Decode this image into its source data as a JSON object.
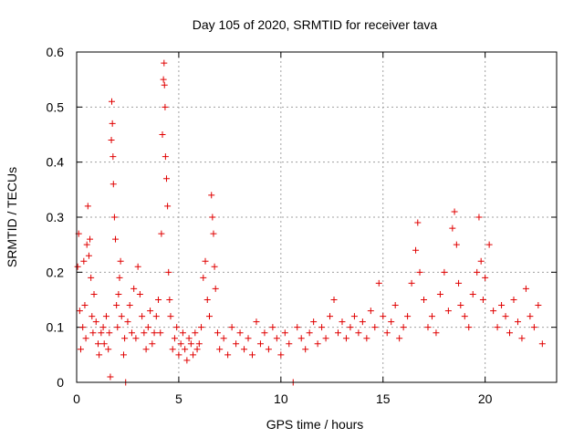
{
  "chart_data": {
    "type": "scatter",
    "title": "Day 105 of 2020, SRMTID for receiver tava",
    "xlabel": "GPS time / hours",
    "ylabel": "SRMTID / TECUs",
    "xlim": [
      0,
      23.5
    ],
    "ylim": [
      0,
      0.6
    ],
    "xticks": [
      0,
      5,
      10,
      15,
      20
    ],
    "yticks": [
      0,
      0.1,
      0.2,
      0.3,
      0.4,
      0.5,
      0.6
    ],
    "grid": true,
    "marker": "+",
    "series_color": "#ff0000",
    "series": [
      {
        "name": "SRMTID",
        "points": [
          [
            0.05,
            0.21
          ],
          [
            0.1,
            0.27
          ],
          [
            0.15,
            0.13
          ],
          [
            0.2,
            0.06
          ],
          [
            0.3,
            0.1
          ],
          [
            0.35,
            0.22
          ],
          [
            0.4,
            0.14
          ],
          [
            0.45,
            0.08
          ],
          [
            0.5,
            0.25
          ],
          [
            0.55,
            0.32
          ],
          [
            0.6,
            0.23
          ],
          [
            0.65,
            0.26
          ],
          [
            0.7,
            0.19
          ],
          [
            0.75,
            0.12
          ],
          [
            0.8,
            0.09
          ],
          [
            0.85,
            0.16
          ],
          [
            0.95,
            0.11
          ],
          [
            1.05,
            0.07
          ],
          [
            1.1,
            0.05
          ],
          [
            1.2,
            0.09
          ],
          [
            1.3,
            0.1
          ],
          [
            1.35,
            0.07
          ],
          [
            1.45,
            0.12
          ],
          [
            1.55,
            0.06
          ],
          [
            1.6,
            0.09
          ],
          [
            1.65,
            0.01
          ],
          [
            1.7,
            0.44
          ],
          [
            1.72,
            0.51
          ],
          [
            1.75,
            0.47
          ],
          [
            1.78,
            0.41
          ],
          [
            1.8,
            0.36
          ],
          [
            1.85,
            0.3
          ],
          [
            1.9,
            0.26
          ],
          [
            1.95,
            0.14
          ],
          [
            2.0,
            0.1
          ],
          [
            2.05,
            0.16
          ],
          [
            2.1,
            0.19
          ],
          [
            2.15,
            0.22
          ],
          [
            2.2,
            0.12
          ],
          [
            2.3,
            0.05
          ],
          [
            2.35,
            0.08
          ],
          [
            2.4,
            0.0
          ],
          [
            2.5,
            0.11
          ],
          [
            2.6,
            0.14
          ],
          [
            2.7,
            0.09
          ],
          [
            2.8,
            0.17
          ],
          [
            2.9,
            0.08
          ],
          [
            3.0,
            0.21
          ],
          [
            3.1,
            0.16
          ],
          [
            3.2,
            0.12
          ],
          [
            3.3,
            0.09
          ],
          [
            3.4,
            0.06
          ],
          [
            3.5,
            0.1
          ],
          [
            3.6,
            0.13
          ],
          [
            3.7,
            0.07
          ],
          [
            3.8,
            0.09
          ],
          [
            3.9,
            0.12
          ],
          [
            4.0,
            0.15
          ],
          [
            4.1,
            0.09
          ],
          [
            4.15,
            0.27
          ],
          [
            4.2,
            0.45
          ],
          [
            4.25,
            0.55
          ],
          [
            4.28,
            0.58
          ],
          [
            4.3,
            0.54
          ],
          [
            4.33,
            0.5
          ],
          [
            4.35,
            0.41
          ],
          [
            4.4,
            0.37
          ],
          [
            4.45,
            0.32
          ],
          [
            4.5,
            0.2
          ],
          [
            4.55,
            0.15
          ],
          [
            4.6,
            0.12
          ],
          [
            4.7,
            0.06
          ],
          [
            4.8,
            0.08
          ],
          [
            4.9,
            0.1
          ],
          [
            5.0,
            0.05
          ],
          [
            5.1,
            0.07
          ],
          [
            5.2,
            0.09
          ],
          [
            5.3,
            0.06
          ],
          [
            5.4,
            0.04
          ],
          [
            5.5,
            0.08
          ],
          [
            5.6,
            0.07
          ],
          [
            5.7,
            0.05
          ],
          [
            5.8,
            0.09
          ],
          [
            5.9,
            0.06
          ],
          [
            6.0,
            0.07
          ],
          [
            6.1,
            0.1
          ],
          [
            6.2,
            0.19
          ],
          [
            6.3,
            0.22
          ],
          [
            6.4,
            0.15
          ],
          [
            6.5,
            0.12
          ],
          [
            6.6,
            0.34
          ],
          [
            6.65,
            0.3
          ],
          [
            6.7,
            0.27
          ],
          [
            6.75,
            0.21
          ],
          [
            6.8,
            0.17
          ],
          [
            6.9,
            0.09
          ],
          [
            7.0,
            0.06
          ],
          [
            7.2,
            0.08
          ],
          [
            7.4,
            0.05
          ],
          [
            7.6,
            0.1
          ],
          [
            7.8,
            0.07
          ],
          [
            8.0,
            0.09
          ],
          [
            8.2,
            0.06
          ],
          [
            8.4,
            0.08
          ],
          [
            8.6,
            0.05
          ],
          [
            8.8,
            0.11
          ],
          [
            9.0,
            0.07
          ],
          [
            9.2,
            0.09
          ],
          [
            9.4,
            0.06
          ],
          [
            9.6,
            0.1
          ],
          [
            9.8,
            0.08
          ],
          [
            10.0,
            0.05
          ],
          [
            10.2,
            0.09
          ],
          [
            10.4,
            0.07
          ],
          [
            10.6,
            0.0
          ],
          [
            10.8,
            0.1
          ],
          [
            11.0,
            0.08
          ],
          [
            11.2,
            0.06
          ],
          [
            11.4,
            0.09
          ],
          [
            11.6,
            0.11
          ],
          [
            11.8,
            0.07
          ],
          [
            12.0,
            0.1
          ],
          [
            12.2,
            0.08
          ],
          [
            12.4,
            0.12
          ],
          [
            12.6,
            0.15
          ],
          [
            12.8,
            0.09
          ],
          [
            13.0,
            0.11
          ],
          [
            13.2,
            0.08
          ],
          [
            13.4,
            0.1
          ],
          [
            13.6,
            0.12
          ],
          [
            13.8,
            0.09
          ],
          [
            14.0,
            0.11
          ],
          [
            14.2,
            0.08
          ],
          [
            14.4,
            0.13
          ],
          [
            14.6,
            0.1
          ],
          [
            14.8,
            0.18
          ],
          [
            15.0,
            0.12
          ],
          [
            15.2,
            0.09
          ],
          [
            15.4,
            0.11
          ],
          [
            15.6,
            0.14
          ],
          [
            15.8,
            0.08
          ],
          [
            16.0,
            0.1
          ],
          [
            16.2,
            0.12
          ],
          [
            16.4,
            0.18
          ],
          [
            16.6,
            0.24
          ],
          [
            16.7,
            0.29
          ],
          [
            16.8,
            0.2
          ],
          [
            17.0,
            0.15
          ],
          [
            17.2,
            0.1
          ],
          [
            17.4,
            0.12
          ],
          [
            17.6,
            0.09
          ],
          [
            17.8,
            0.16
          ],
          [
            18.0,
            0.2
          ],
          [
            18.2,
            0.13
          ],
          [
            18.4,
            0.28
          ],
          [
            18.5,
            0.31
          ],
          [
            18.6,
            0.25
          ],
          [
            18.7,
            0.18
          ],
          [
            18.8,
            0.14
          ],
          [
            19.0,
            0.12
          ],
          [
            19.2,
            0.1
          ],
          [
            19.4,
            0.16
          ],
          [
            19.6,
            0.2
          ],
          [
            19.7,
            0.3
          ],
          [
            19.8,
            0.22
          ],
          [
            19.9,
            0.15
          ],
          [
            20.0,
            0.19
          ],
          [
            20.2,
            0.25
          ],
          [
            20.4,
            0.13
          ],
          [
            20.6,
            0.1
          ],
          [
            20.8,
            0.14
          ],
          [
            21.0,
            0.12
          ],
          [
            21.2,
            0.09
          ],
          [
            21.4,
            0.15
          ],
          [
            21.6,
            0.11
          ],
          [
            21.8,
            0.08
          ],
          [
            22.0,
            0.17
          ],
          [
            22.2,
            0.12
          ],
          [
            22.4,
            0.1
          ],
          [
            22.6,
            0.14
          ],
          [
            22.8,
            0.07
          ]
        ]
      }
    ]
  }
}
